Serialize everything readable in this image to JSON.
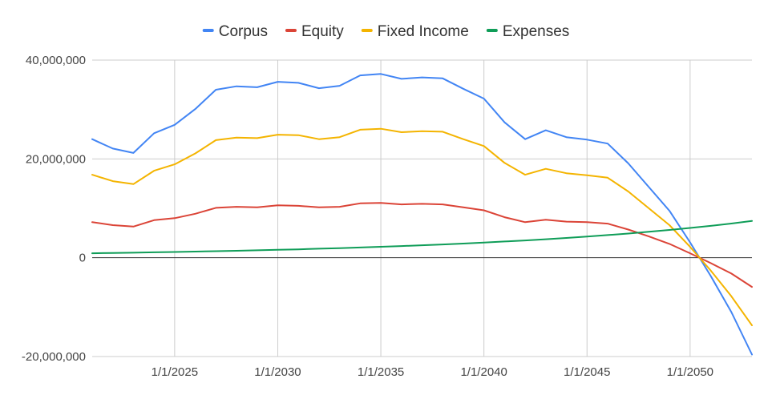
{
  "chart_data": {
    "type": "line",
    "title": "",
    "xlabel": "",
    "ylabel": "",
    "ylim": [
      -20000000,
      40000000
    ],
    "yticks": [
      {
        "value": -20000000,
        "label": "-20,000,000"
      },
      {
        "value": 0,
        "label": "0"
      },
      {
        "value": 20000000,
        "label": "20,000,000"
      },
      {
        "value": 40000000,
        "label": "40,000,000"
      }
    ],
    "x": [
      2021,
      2022,
      2023,
      2024,
      2025,
      2026,
      2027,
      2028,
      2029,
      2030,
      2031,
      2032,
      2033,
      2034,
      2035,
      2036,
      2037,
      2038,
      2039,
      2040,
      2041,
      2042,
      2043,
      2044,
      2045,
      2046,
      2047,
      2048,
      2049,
      2050,
      2051,
      2052,
      2053
    ],
    "xlim": [
      2021,
      2053
    ],
    "xticks": [
      {
        "value": 2025,
        "label": "1/1/2025"
      },
      {
        "value": 2030,
        "label": "1/1/2030"
      },
      {
        "value": 2035,
        "label": "1/1/2035"
      },
      {
        "value": 2040,
        "label": "1/1/2040"
      },
      {
        "value": 2045,
        "label": "1/1/2045"
      },
      {
        "value": 2050,
        "label": "1/1/2050"
      }
    ],
    "grid": true,
    "legend_position": "top",
    "series": [
      {
        "name": "Corpus",
        "color": "#4285f4",
        "values": [
          24000000,
          22100000,
          21200000,
          25200000,
          26900000,
          30100000,
          34000000,
          34700000,
          34500000,
          35600000,
          35400000,
          34300000,
          34800000,
          36900000,
          37200000,
          36200000,
          36500000,
          36300000,
          34200000,
          32200000,
          27400000,
          24000000,
          25800000,
          24400000,
          23900000,
          23100000,
          19100000,
          14300000,
          9500000,
          3100000,
          -3700000,
          -11000000,
          -19600000
        ]
      },
      {
        "name": "Equity",
        "color": "#db4437",
        "values": [
          7200000,
          6600000,
          6300000,
          7600000,
          8000000,
          8900000,
          10100000,
          10300000,
          10200000,
          10600000,
          10500000,
          10200000,
          10300000,
          11000000,
          11100000,
          10800000,
          10900000,
          10800000,
          10200000,
          9600000,
          8200000,
          7200000,
          7700000,
          7300000,
          7200000,
          6900000,
          5700000,
          4300000,
          2800000,
          900000,
          -1100000,
          -3200000,
          -5900000
        ]
      },
      {
        "name": "Fixed Income",
        "color": "#f4b400",
        "values": [
          16800000,
          15500000,
          14900000,
          17600000,
          18900000,
          21100000,
          23800000,
          24300000,
          24200000,
          24900000,
          24800000,
          24000000,
          24400000,
          25900000,
          26100000,
          25400000,
          25600000,
          25500000,
          24000000,
          22600000,
          19200000,
          16800000,
          18000000,
          17100000,
          16700000,
          16200000,
          13400000,
          10000000,
          6600000,
          2200000,
          -2600000,
          -7800000,
          -13700000
        ]
      },
      {
        "name": "Expenses",
        "color": "#0f9d58",
        "values": [
          900000,
          960000,
          1020000,
          1090000,
          1160000,
          1240000,
          1320000,
          1400000,
          1500000,
          1600000,
          1700000,
          1820000,
          1940000,
          2070000,
          2210000,
          2360000,
          2520000,
          2690000,
          2870000,
          3070000,
          3280000,
          3500000,
          3740000,
          4000000,
          4280000,
          4580000,
          4900000,
          5250000,
          5620000,
          6020000,
          6450000,
          6920000,
          7430000
        ]
      }
    ]
  }
}
